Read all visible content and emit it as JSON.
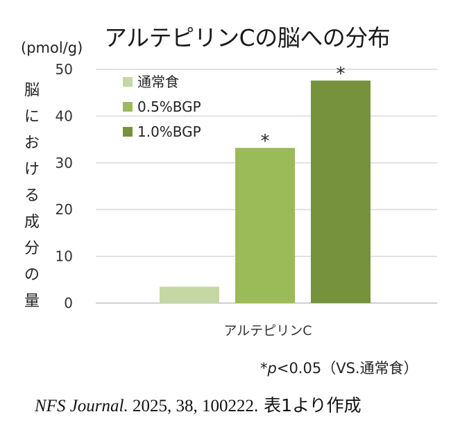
{
  "chart_data": {
    "type": "bar",
    "title": "アルテピリンCの脳への分布",
    "y_unit": "(pmol/g)",
    "ylabel": "脳における成分の量",
    "xlabel": "",
    "categories": [
      "アルテピリンC"
    ],
    "ylim": [
      0,
      50
    ],
    "yticks": [
      0,
      10,
      20,
      30,
      40,
      50
    ],
    "grid": true,
    "legend_position": "top-left",
    "series": [
      {
        "name": "通常食",
        "values": [
          3.5
        ],
        "color": "#c5d8a4",
        "annotation": ""
      },
      {
        "name": "0.5%BGP",
        "values": [
          33.2
        ],
        "color": "#9bbb59",
        "annotation": "*"
      },
      {
        "name": "1.0%BGP",
        "values": [
          47.6
        ],
        "color": "#76923c",
        "annotation": "*"
      }
    ]
  },
  "note": {
    "star": "*",
    "p": "p",
    "rest": "<0.05（VS.通常食）"
  },
  "source": {
    "journal": "NFS Journal.",
    "citation": " 2025, 38, 100222.",
    "suffix": " 表1より作成"
  }
}
